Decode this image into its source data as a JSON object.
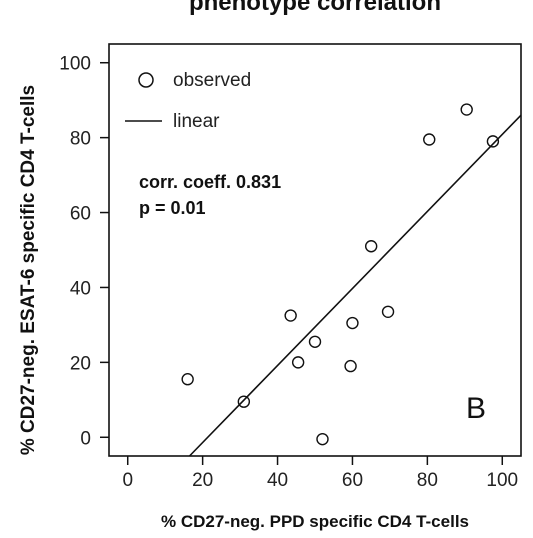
{
  "chart_data": {
    "type": "scatter",
    "title": "phenotype correlation",
    "xlabel": "% CD27-neg. PPD specific CD4 T-cells",
    "ylabel": "% CD27-neg. ESAT-6 specific CD4 T-cells",
    "xlim": [
      -5,
      105
    ],
    "ylim": [
      -5,
      105
    ],
    "xticks": [
      0,
      20,
      40,
      60,
      80,
      100
    ],
    "yticks": [
      0,
      20,
      40,
      60,
      80,
      100
    ],
    "grid": false,
    "legend_position": "top-left",
    "series": [
      {
        "name": "observed",
        "marker": "open-circle",
        "x": [
          16,
          31,
          43.5,
          45.5,
          50,
          52,
          59.5,
          60,
          65,
          69.5,
          80.5,
          90.5,
          97.5
        ],
        "y": [
          15.5,
          9.5,
          32.5,
          20,
          25.5,
          -0.5,
          19,
          30.5,
          51,
          33.5,
          79.5,
          87.5,
          79
        ]
      },
      {
        "name": "linear",
        "line": {
          "x": [
            16.5,
            105
          ],
          "y": [
            -5,
            86
          ]
        }
      }
    ],
    "annotations": {
      "corr": "corr. coeff. 0.831",
      "p": "p = 0.01",
      "panel": "B"
    }
  }
}
